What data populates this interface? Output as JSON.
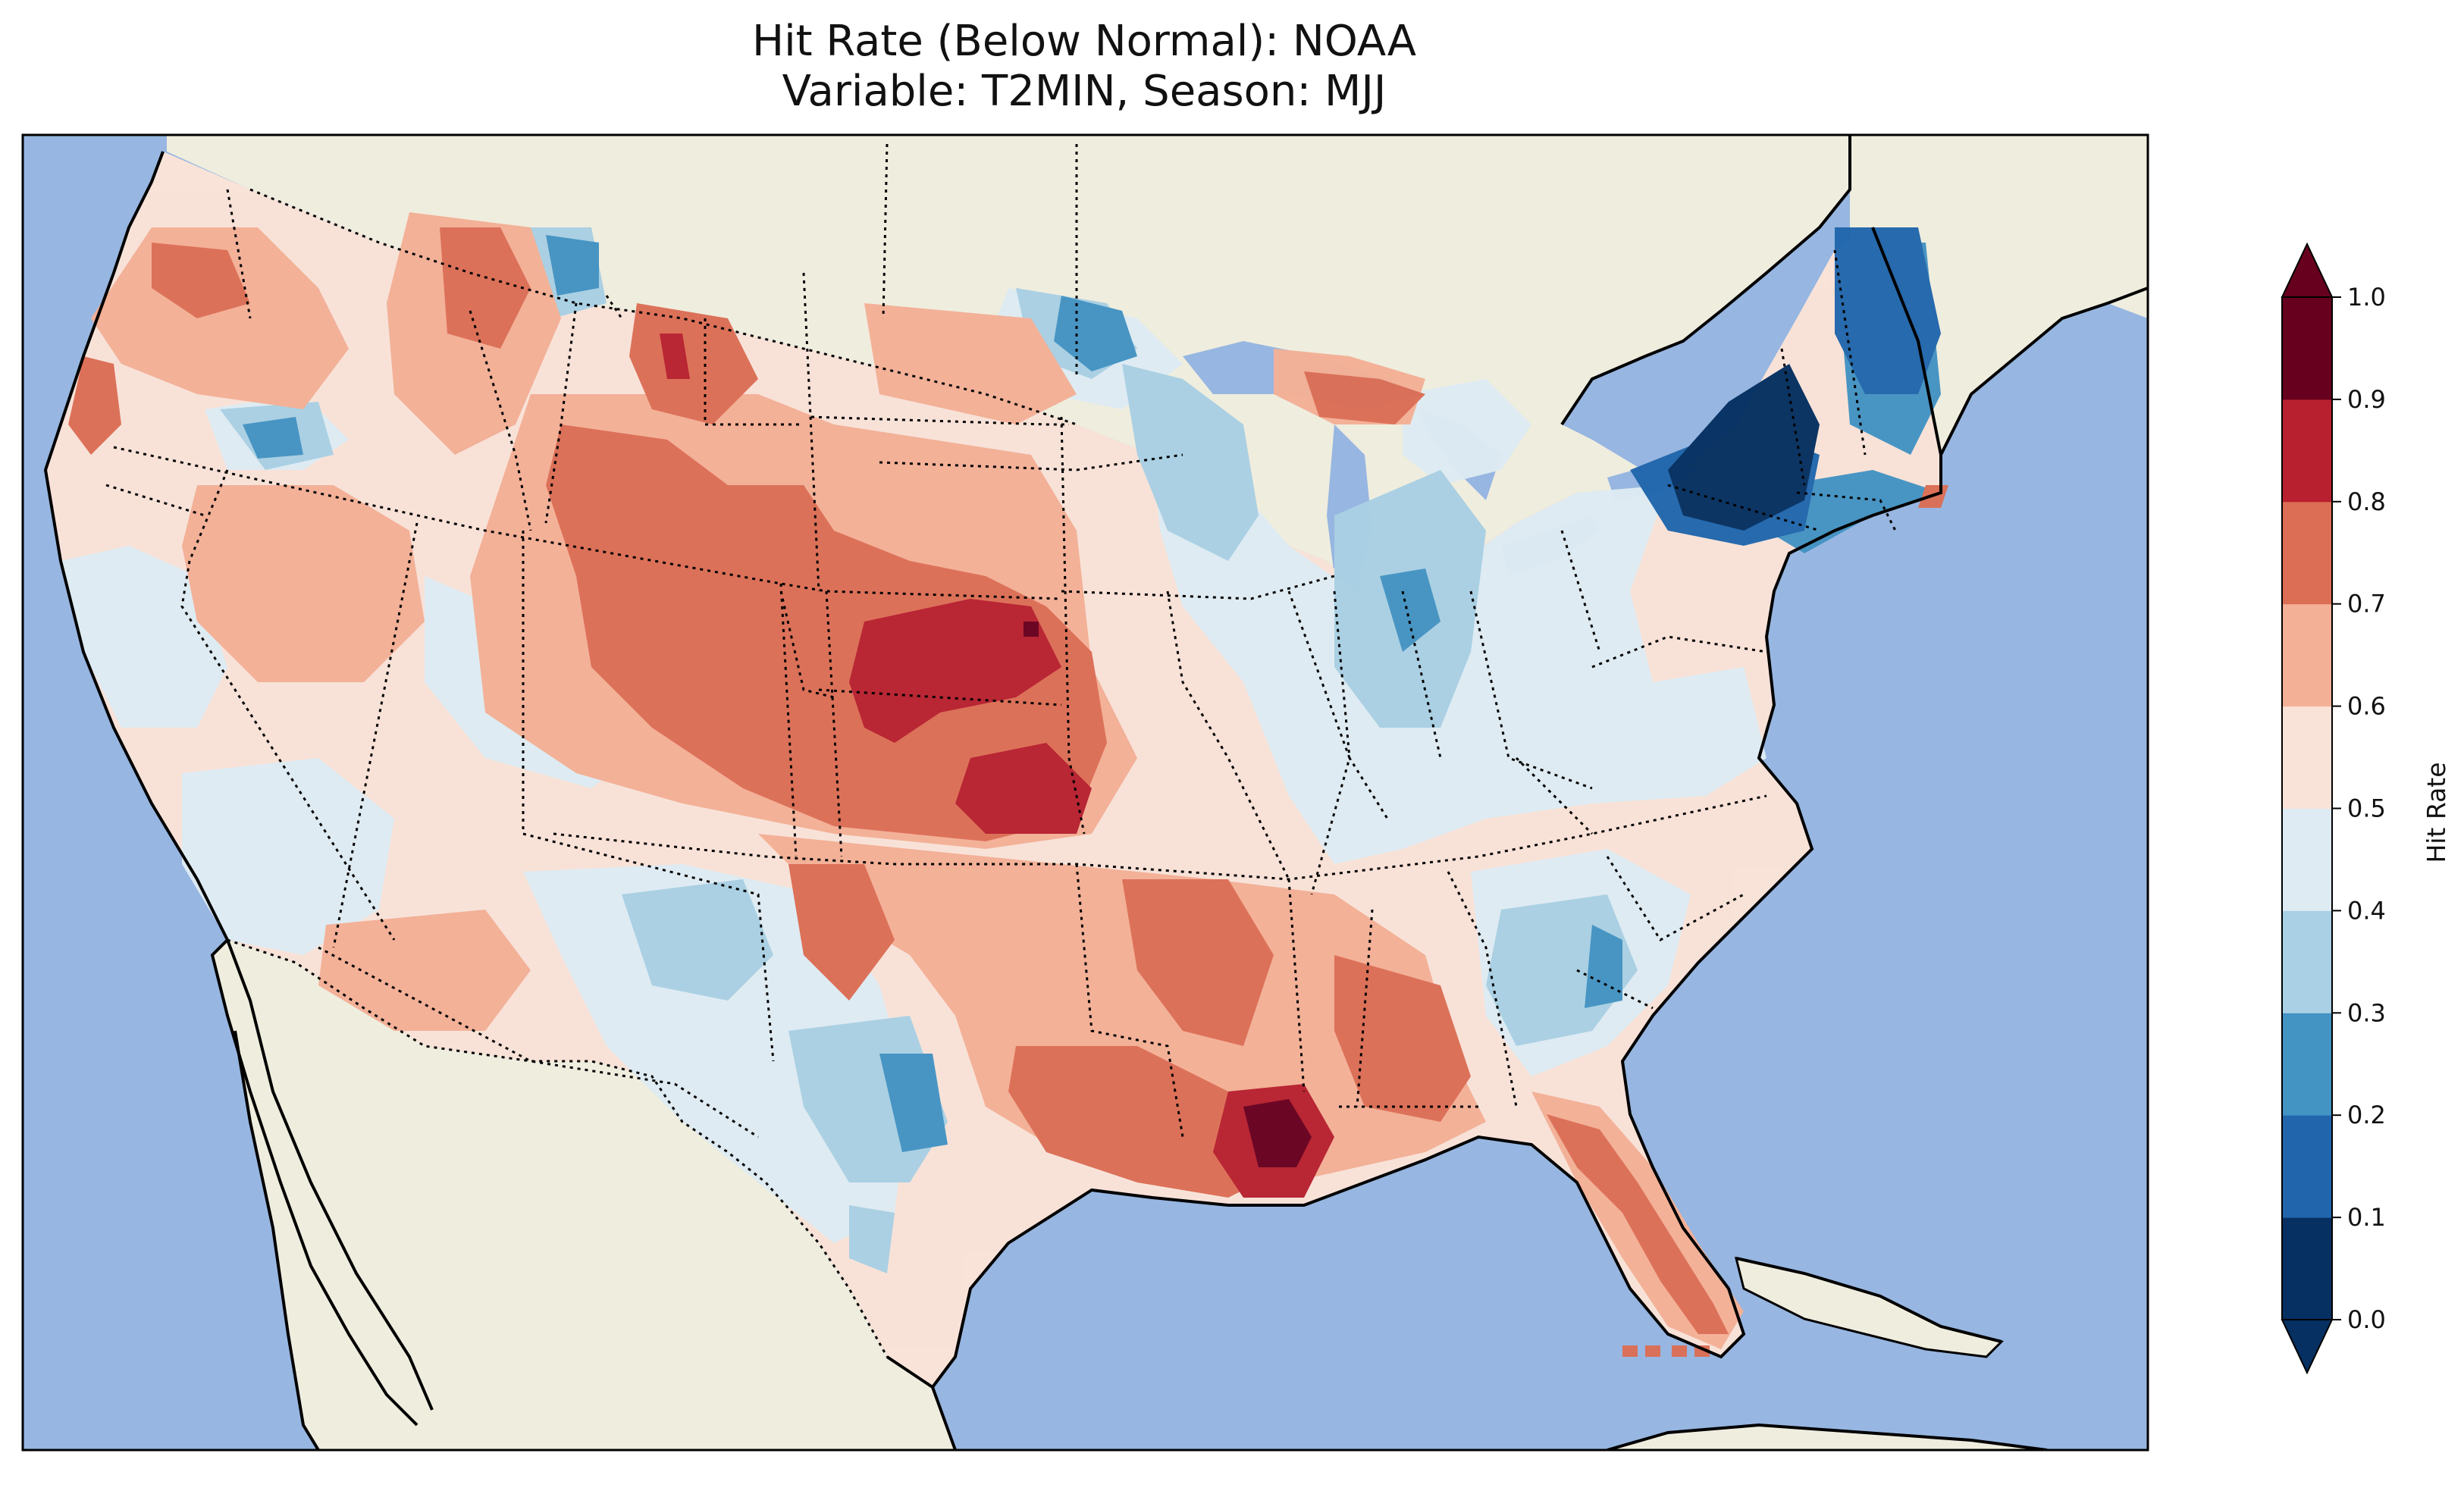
{
  "title": {
    "line1": "Hit Rate (Below Normal): NOAA",
    "line2": "Variable: T2MIN, Season: MJJ"
  },
  "colorbar": {
    "label": "Hit Rate",
    "ticks": [
      "0.0",
      "0.1",
      "0.2",
      "0.3",
      "0.4",
      "0.5",
      "0.6",
      "0.7",
      "0.8",
      "0.9",
      "1.0"
    ],
    "colors": [
      "#053061",
      "#2166ac",
      "#4393c3",
      "#92c5de",
      "#d1e5f0",
      "#f7f7f7",
      "#fddbc7",
      "#f4a582",
      "#d6604d",
      "#b2182b",
      "#67001f"
    ],
    "band_colors": [
      "#053061",
      "#2166ac",
      "#4393c3",
      "#a9d0e4",
      "#deebf3",
      "#f9e2d8",
      "#f4b096",
      "#dc6e55",
      "#b8202f",
      "#67001f"
    ],
    "extend": "both"
  },
  "map_colors": {
    "ocean": "#97b6e1",
    "land": "#efedde",
    "coast": "#000000"
  }
}
